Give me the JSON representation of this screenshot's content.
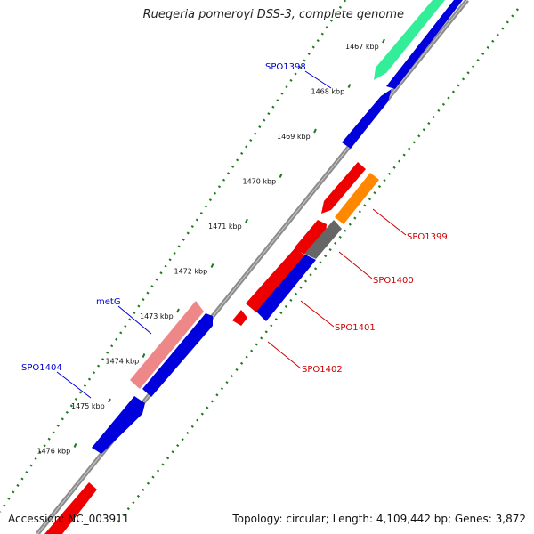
{
  "title": "Ruegeria pomeroyi DSS-3, complete genome",
  "accession": "Accession: NC_003911",
  "summary": "Topology: circular; Length: 4,109,442 bp; Genes: 3,872",
  "colors": {
    "backbone": "#8c8c8c",
    "dots": "#1f7a1f",
    "forward_label": "#0000cc",
    "reverse_label": "#cc0000"
  },
  "ticks": [
    "1467 kbp",
    "1468 kbp",
    "1469 kbp",
    "1470 kbp",
    "1471 kbp",
    "1472 kbp",
    "1473 kbp",
    "1474 kbp",
    "1475 kbp",
    "1476 kbp"
  ],
  "gene_labels": {
    "SPO1398": "SPO1398",
    "metG": "metG",
    "SPO1404": "SPO1404",
    "SPO1399": "SPO1399",
    "SPO1400": "SPO1400",
    "SPO1401": "SPO1401",
    "SPO1402": "SPO1402"
  }
}
